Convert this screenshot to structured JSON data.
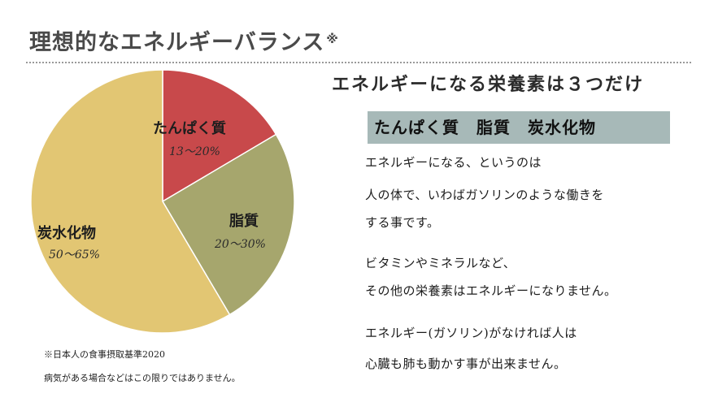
{
  "title": {
    "text": "理想的なエネルギーバランス",
    "mark": "※"
  },
  "chart_data": {
    "type": "pie",
    "slices": [
      {
        "label": "たんぱく質",
        "range_text": "13〜20%",
        "value": 16.5,
        "color": "#c8494b"
      },
      {
        "label": "脂質",
        "range_text": "20〜30%",
        "value": 25,
        "color": "#a6a66d"
      },
      {
        "label": "炭水化物",
        "range_text": "50〜65%",
        "value": 58.5,
        "color": "#e2c673"
      }
    ]
  },
  "right": {
    "subhead": "エネルギーになる栄養素は３つだけ",
    "band": "たんぱく質　脂質　炭水化物",
    "lines": [
      "エネルギーになる、というのは",
      "人の体で、いわばガソリンのような働きを",
      "する事です。",
      "ビタミンやミネラルなど、",
      "その他の栄養素はエネルギーになりません。",
      "エネルギー(ガソリン)がなければ人は",
      "心臓も肺も動かす事が出来ません。"
    ]
  },
  "notes": [
    "※日本人の食事摂取基準2020",
    "病気がある場合などはこの限りではありません。"
  ]
}
